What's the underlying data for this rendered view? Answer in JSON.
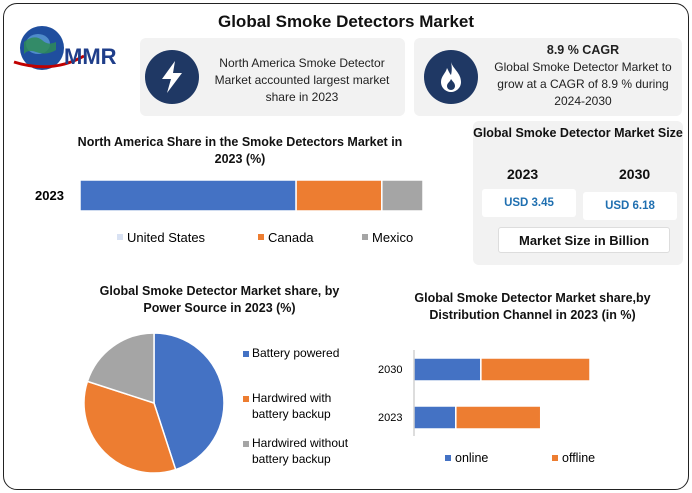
{
  "header": {
    "title": "Global Smoke Detectors Market",
    "logo_text": "MMR"
  },
  "cards": [
    {
      "icon": "lightning-icon",
      "text": "North America Smoke Detector Market accounted largest market share in 2023"
    },
    {
      "icon": "flame-icon",
      "headline": "8.9 % CAGR",
      "text": "Global Smoke Detector Market to grow at a CAGR of 8.9 % during 2024-2030"
    }
  ],
  "market_size": {
    "title": "Global Smoke Detector Market Size",
    "years": [
      "2023",
      "2030"
    ],
    "values": [
      "USD 3.45",
      "USD 6.18"
    ],
    "unit": "Market Size in Billion"
  },
  "colors": {
    "blue": "#4472c4",
    "orange": "#ed7d31",
    "gray": "#a5a5a5",
    "navy": "#1f3864"
  },
  "chart_data": [
    {
      "type": "bar",
      "orientation": "horizontal",
      "stacked": true,
      "title": "North America Share in the Smoke Detectors Market in 2023 (%)",
      "categories": [
        "2023"
      ],
      "series": [
        {
          "name": "United States",
          "values": [
            63
          ]
        },
        {
          "name": "Canada",
          "values": [
            25
          ]
        },
        {
          "name": "Mexico",
          "values": [
            12
          ]
        }
      ],
      "legend": "bottom"
    },
    {
      "type": "pie",
      "title": "Global Smoke Detector Market share, by Power Source in 2023  (%)",
      "labels": [
        "Battery powered",
        "Hardwired with battery backup",
        "Hardwired without battery backup"
      ],
      "values": [
        45,
        35,
        20
      ],
      "legend": "right"
    },
    {
      "type": "bar",
      "orientation": "horizontal",
      "stacked": true,
      "title": "Global Smoke Detector Market share,by Distribution Channel in 2023 (in %)",
      "categories": [
        "2030",
        "2023"
      ],
      "series": [
        {
          "name": "online",
          "values": [
            38,
            33
          ]
        },
        {
          "name": "offline",
          "values": [
            62,
            67
          ]
        }
      ],
      "legend": "bottom"
    }
  ]
}
